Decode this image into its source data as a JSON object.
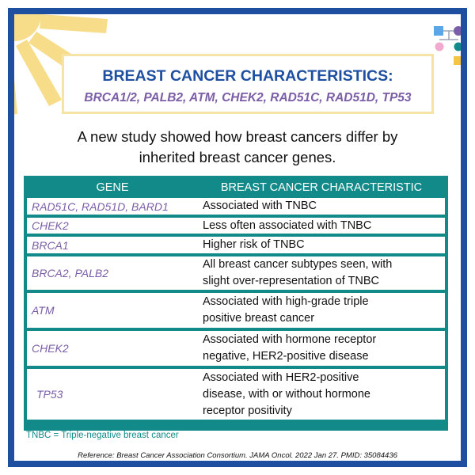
{
  "title": {
    "main": "BREAST CANCER CHARACTERISTICS:",
    "genes": "BRCA1/2, PALB2, ATM, CHEK2, RAD51C, RAD51D, TP53"
  },
  "intro": {
    "line1": "A new study showed how breast cancers differ by",
    "line2": "inherited breast cancer genes."
  },
  "table": {
    "headers": [
      "GENE",
      "BREAST CANCER CHARACTERISTIC"
    ],
    "rows": [
      {
        "gene": "RAD51C, RAD51D, BARD1",
        "lines": [
          "Associated with TNBC"
        ]
      },
      {
        "gene": "CHEK2",
        "lines": [
          "Less often associated with TNBC"
        ]
      },
      {
        "gene": "BRCA1",
        "lines": [
          "Higher risk of TNBC"
        ]
      },
      {
        "gene": "BRCA2, PALB2",
        "lines": [
          "All breast cancer subtypes seen, with",
          "slight over-representation of TNBC"
        ]
      },
      {
        "gene": "ATM",
        "lines": [
          "Associated with high-grade triple",
          "positive breast cancer"
        ]
      },
      {
        "gene": "CHEK2",
        "lines": [
          "Associated with hormone receptor",
          "negative, HER2-positive disease"
        ]
      },
      {
        "gene": "TP53",
        "lines": [
          "Associated with HER2-positive",
          "disease, with or without hormone",
          "receptor positivity"
        ]
      }
    ]
  },
  "footnote": "TNBC = Triple-negative breast cancer",
  "reference": "Reference: Breast Cancer Association Consortium. JAMA Oncol. 2022 Jan 27. PMID: 35084436",
  "colors": {
    "border": "#1e4fa0",
    "teal": "#128a8a",
    "purple": "#7b5ea7",
    "sun": "#f7dc8a",
    "title_box_border": "#f6e3a6"
  },
  "icons": [
    "sun-rays-decoration",
    "pedigree-logo-icon"
  ]
}
